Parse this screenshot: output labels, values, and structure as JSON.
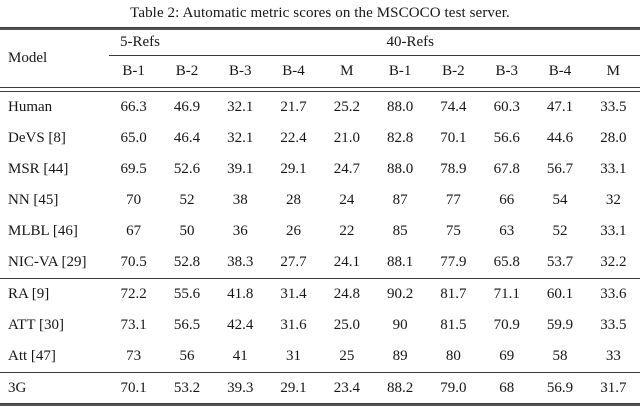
{
  "caption": "Table 2: Automatic metric scores on the MSCOCO test server.",
  "table": {
    "model_header": "Model",
    "groups": [
      {
        "label": "5-Refs"
      },
      {
        "label": "40-Refs"
      }
    ],
    "columns": [
      "B-1",
      "B-2",
      "B-3",
      "B-4",
      "M",
      "B-1",
      "B-2",
      "B-3",
      "B-4",
      "M"
    ],
    "sections": [
      {
        "rows": [
          {
            "model": "Human",
            "values": [
              "66.3",
              "46.9",
              "32.1",
              "21.7",
              "25.2",
              "88.0",
              "74.4",
              "60.3",
              "47.1",
              "33.5"
            ]
          },
          {
            "model": "DeVS [8]",
            "values": [
              "65.0",
              "46.4",
              "32.1",
              "22.4",
              "21.0",
              "82.8",
              "70.1",
              "56.6",
              "44.6",
              "28.0"
            ]
          },
          {
            "model": "MSR [44]",
            "values": [
              "69.5",
              "52.6",
              "39.1",
              "29.1",
              "24.7",
              "88.0",
              "78.9",
              "67.8",
              "56.7",
              "33.1"
            ]
          },
          {
            "model": "NN [45]",
            "values": [
              "70",
              "52",
              "38",
              "28",
              "24",
              "87",
              "77",
              "66",
              "54",
              "32"
            ]
          },
          {
            "model": "MLBL [46]",
            "values": [
              "67",
              "50",
              "36",
              "26",
              "22",
              "85",
              "75",
              "63",
              "52",
              "33.1"
            ]
          },
          {
            "model": "NIC-VA [29]",
            "values": [
              "70.5",
              "52.8",
              "38.3",
              "27.7",
              "24.1",
              "88.1",
              "77.9",
              "65.8",
              "53.7",
              "32.2"
            ]
          }
        ]
      },
      {
        "rows": [
          {
            "model": "RA [9]",
            "values": [
              "72.2",
              "55.6",
              "41.8",
              "31.4",
              "24.8",
              "90.2",
              "81.7",
              "71.1",
              "60.1",
              "33.6"
            ]
          },
          {
            "model": "ATT [30]",
            "values": [
              "73.1",
              "56.5",
              "42.4",
              "31.6",
              "25.0",
              "90",
              "81.5",
              "70.9",
              "59.9",
              "33.5"
            ]
          },
          {
            "model": "Att [47]",
            "values": [
              "73",
              "56",
              "41",
              "31",
              "25",
              "89",
              "80",
              "69",
              "58",
              "33"
            ]
          }
        ]
      },
      {
        "rows": [
          {
            "model": "3G",
            "values": [
              "70.1",
              "53.2",
              "39.3",
              "29.1",
              "23.4",
              "88.2",
              "79.0",
              "68",
              "56.9",
              "31.7"
            ]
          }
        ]
      }
    ]
  }
}
